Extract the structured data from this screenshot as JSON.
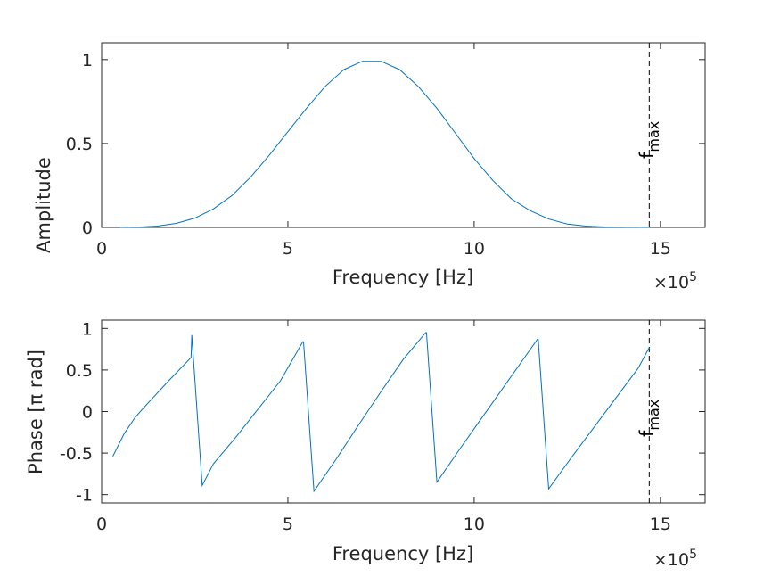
{
  "colors": {
    "series": "#0072BD",
    "axes": "#262626",
    "marker": "#000000",
    "background": "#ffffff"
  },
  "marker": {
    "x": 1.47,
    "label_main": "f",
    "label_sub": "max",
    "linestyle": "dashed"
  },
  "x_multiplier": {
    "times": "×",
    "base": "10",
    "exp": "5"
  },
  "chart_data": [
    {
      "type": "line",
      "xlabel": "Frequency [Hz]",
      "ylabel": "Amplitude",
      "xlim": [
        0,
        1.62
      ],
      "ylim": [
        0,
        1.1
      ],
      "x_ticks": [
        0,
        0.5,
        1.0,
        1.5
      ],
      "x_tick_labels": [
        "0",
        "5",
        "10",
        "15"
      ],
      "y_ticks": [
        0,
        0.5,
        1
      ],
      "y_tick_labels": [
        "0",
        "0.5",
        "1"
      ],
      "series": [
        {
          "x": [
            0.05,
            0.1,
            0.15,
            0.2,
            0.25,
            0.3,
            0.35,
            0.4,
            0.45,
            0.5,
            0.55,
            0.6,
            0.65,
            0.7,
            0.75,
            0.8,
            0.85,
            0.9,
            0.95,
            1.0,
            1.05,
            1.1,
            1.15,
            1.2,
            1.25,
            1.3,
            1.35,
            1.4,
            1.45,
            1.47
          ],
          "values": [
            0.0,
            0.002,
            0.008,
            0.024,
            0.055,
            0.11,
            0.19,
            0.3,
            0.43,
            0.57,
            0.71,
            0.84,
            0.94,
            0.99,
            0.99,
            0.94,
            0.84,
            0.71,
            0.56,
            0.41,
            0.28,
            0.17,
            0.1,
            0.05,
            0.02,
            0.008,
            0.003,
            0.001,
            0.0,
            0.0
          ]
        }
      ]
    },
    {
      "type": "line",
      "xlabel": "Frequency [Hz]",
      "ylabel": "Phase [π rad]",
      "xlim": [
        0,
        1.62
      ],
      "ylim": [
        -1.1,
        1.1
      ],
      "x_ticks": [
        0,
        0.5,
        1.0,
        1.5
      ],
      "x_tick_labels": [
        "0",
        "5",
        "10",
        "15"
      ],
      "y_ticks": [
        -1,
        -0.5,
        0,
        0.5,
        1
      ],
      "y_tick_labels": [
        "-1",
        "-0.5",
        "0",
        "0.5",
        "1"
      ],
      "series": [
        {
          "x": [
            0.03,
            0.06,
            0.09,
            0.12,
            0.18,
            0.24,
            0.242,
            0.27,
            0.3,
            0.36,
            0.42,
            0.48,
            0.54,
            0.542,
            0.57,
            0.63,
            0.69,
            0.75,
            0.81,
            0.87,
            0.872,
            0.9,
            0.96,
            1.02,
            1.08,
            1.14,
            1.17,
            1.172,
            1.2,
            1.26,
            1.32,
            1.38,
            1.44,
            1.47
          ],
          "values": [
            -0.54,
            -0.27,
            -0.07,
            0.08,
            0.37,
            0.65,
            0.92,
            -0.89,
            -0.63,
            -0.31,
            0.03,
            0.37,
            0.84,
            0.84,
            -0.96,
            -0.57,
            -0.16,
            0.24,
            0.63,
            0.95,
            0.95,
            -0.85,
            -0.46,
            -0.08,
            0.3,
            0.68,
            0.87,
            0.87,
            -0.93,
            -0.56,
            -0.2,
            0.16,
            0.52,
            0.77
          ]
        }
      ]
    }
  ]
}
